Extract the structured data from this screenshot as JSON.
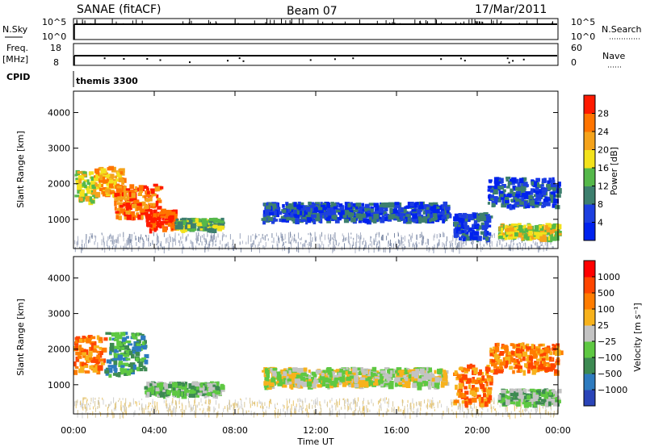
{
  "header": {
    "station": "SANAE (fitACF)",
    "beam": "Beam 07",
    "date": "17/Mar/2011"
  },
  "top_panels": {
    "nsky_label": "N.Sky",
    "nsky_ticks": [
      "10^5",
      "10^0"
    ],
    "nsearch_label": "N.Search",
    "nsearch_ticks": [
      "10^5",
      "10^0"
    ],
    "freq_label": "Freq.",
    "freq_unit": "[MHz]",
    "freq_ticks": [
      "18",
      "8"
    ],
    "nave_label": "Nave",
    "nave_ticks": [
      "60",
      "0"
    ],
    "cpid_label": "CPID",
    "cpid_value": "themis 3300"
  },
  "chart_data": [
    {
      "type": "heatmap",
      "name": "power",
      "ylabel": "Slant Range [km]",
      "xlabel": "Time UT",
      "x_ticks": [
        "00:00",
        "04:00",
        "08:00",
        "12:00",
        "16:00",
        "20:00",
        "00:00"
      ],
      "x_tick_hours": [
        0,
        4,
        8,
        12,
        16,
        20,
        24
      ],
      "y_ticks": [
        1000,
        2000,
        3000,
        4000
      ],
      "xlim": [
        0,
        24
      ],
      "ylim": [
        180,
        4600
      ],
      "colorbar": {
        "label": "Power [dB]",
        "ticks": [
          "28",
          "24",
          "20",
          "16",
          "12",
          "8",
          "4"
        ],
        "tick_values": [
          28,
          24,
          20,
          16,
          12,
          8,
          4
        ],
        "range": [
          0,
          32
        ],
        "colors": [
          "#0022ee",
          "#1d3fe0",
          "#3d7f6e",
          "#55b84a",
          "#f3e21c",
          "#f5a31b",
          "#ff7400",
          "#ff1a00"
        ]
      },
      "echo_regions": [
        {
          "t0": 0.0,
          "t1": 1.0,
          "r0": 1500,
          "r1": 2400,
          "level": 4
        },
        {
          "t0": 1.0,
          "t1": 2.4,
          "r0": 1700,
          "r1": 2500,
          "level": 5
        },
        {
          "t0": 2.0,
          "t1": 4.2,
          "r0": 1100,
          "r1": 2000,
          "level": 6
        },
        {
          "t0": 3.5,
          "t1": 5.0,
          "r0": 750,
          "r1": 1300,
          "level": 7
        },
        {
          "t0": 5.0,
          "t1": 7.3,
          "r0": 750,
          "r1": 1050,
          "level": 3
        },
        {
          "t0": 9.3,
          "t1": 18.5,
          "r0": 1000,
          "r1": 1500,
          "level": 1
        },
        {
          "t0": 20.5,
          "t1": 24.0,
          "r0": 1400,
          "r1": 2200,
          "level": 1
        },
        {
          "t0": 18.8,
          "t1": 20.6,
          "r0": 500,
          "r1": 1200,
          "level": 1
        },
        {
          "t0": 21.0,
          "t1": 24.0,
          "r0": 500,
          "r1": 900,
          "level": 4
        }
      ]
    },
    {
      "type": "heatmap",
      "name": "velocity",
      "ylabel": "Slant Range [km]",
      "xlabel": "Time UT",
      "x_ticks": [
        "00:00",
        "04:00",
        "08:00",
        "12:00",
        "16:00",
        "20:00",
        "00:00"
      ],
      "x_tick_hours": [
        0,
        4,
        8,
        12,
        16,
        20,
        24
      ],
      "y_ticks": [
        1000,
        2000,
        3000,
        4000
      ],
      "xlim": [
        0,
        24
      ],
      "ylim": [
        180,
        4600
      ],
      "colorbar": {
        "label": "Velocity [m s⁻¹]",
        "ticks": [
          "1000",
          "500",
          "100",
          "25",
          "−25",
          "−100",
          "−500",
          "−1000"
        ],
        "colors": [
          "#2a44b8",
          "#2e7bbf",
          "#3d8a52",
          "#5ec842",
          "#c3c3c3",
          "#f7b21c",
          "#ff7c00",
          "#ff4500",
          "#ff0000"
        ]
      },
      "echo_regions": [
        {
          "t0": 0.0,
          "t1": 1.5,
          "r0": 1400,
          "r1": 2400,
          "color_index": 6
        },
        {
          "t0": 1.5,
          "t1": 3.5,
          "r0": 1300,
          "r1": 2500,
          "color_index": 2
        },
        {
          "t0": 3.5,
          "t1": 7.3,
          "r0": 750,
          "r1": 1100,
          "color_index": 3
        },
        {
          "t0": 9.3,
          "t1": 18.5,
          "r0": 1000,
          "r1": 1500,
          "color_index": 4
        },
        {
          "t0": 18.8,
          "t1": 20.6,
          "r0": 500,
          "r1": 1600,
          "color_index": 6
        },
        {
          "t0": 20.6,
          "t1": 24.0,
          "r0": 1400,
          "r1": 2200,
          "color_index": 6
        },
        {
          "t0": 21.0,
          "t1": 24.0,
          "r0": 500,
          "r1": 900,
          "color_index": 3
        }
      ]
    }
  ]
}
